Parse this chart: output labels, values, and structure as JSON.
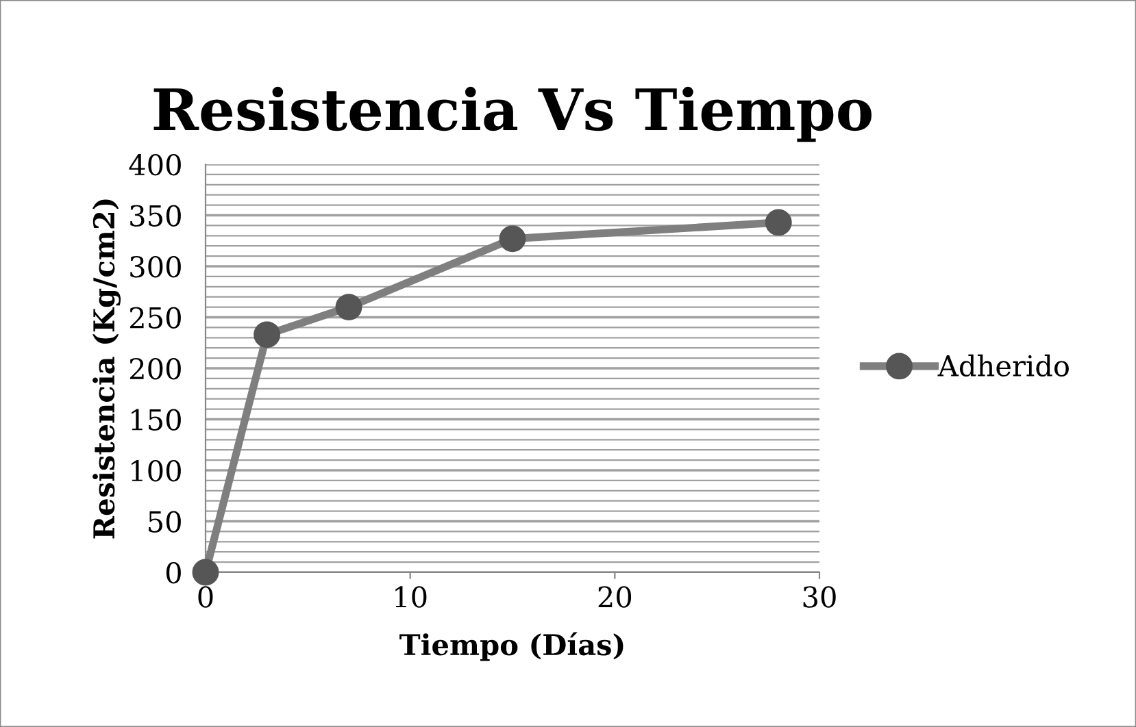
{
  "chart_data": {
    "type": "line",
    "title": "Resistencia Vs Tiempo",
    "xlabel": "Tiempo (Días)",
    "ylabel": "Resistencia (Kg/cm2)",
    "series": [
      {
        "name": "Adherido",
        "color": "#7f7f7f",
        "x": [
          0,
          3,
          7,
          15,
          28
        ],
        "values": [
          0,
          233,
          260,
          327,
          343
        ]
      }
    ],
    "xlim": [
      0,
      30
    ],
    "xticks": [
      0,
      10,
      20,
      30
    ],
    "ylim": [
      0,
      400
    ],
    "yticks": [
      0,
      50,
      100,
      150,
      200,
      250,
      300,
      350,
      400
    ],
    "grid": "y",
    "legend": "right",
    "marker": "circle",
    "line_style": "solid"
  }
}
